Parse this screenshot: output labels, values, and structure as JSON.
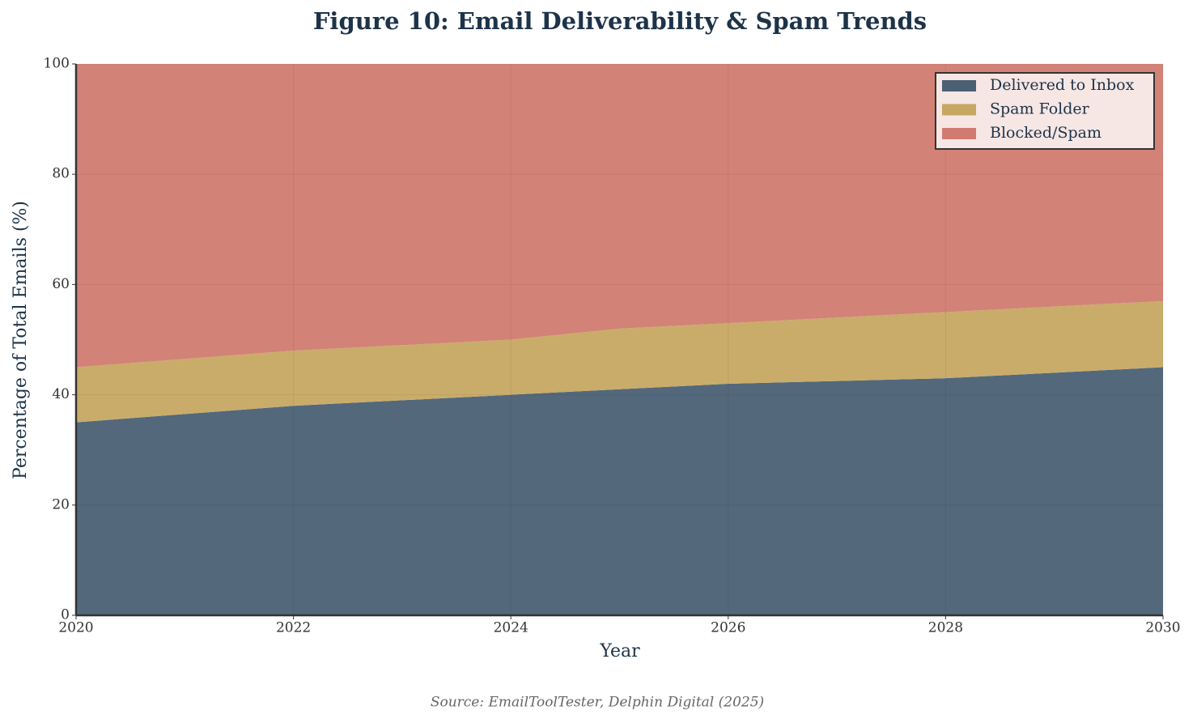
{
  "chart_data": {
    "type": "stacked-area",
    "title": "Figure 10: Email Deliverability & Spam Trends",
    "xlabel": "Year",
    "ylabel": "Percentage of Total Emails (%)",
    "source": "Source: EmailToolTester, Delphin Digital (2025)",
    "x": [
      2020,
      2021,
      2022,
      2023,
      2024,
      2025,
      2026,
      2027,
      2028,
      2029,
      2030
    ],
    "series": [
      {
        "name": "Delivered to Inbox",
        "color": "#4a6074",
        "values": [
          35,
          36.5,
          38,
          39,
          40,
          41,
          42,
          42.5,
          43,
          44,
          45
        ]
      },
      {
        "name": "Spam Folder",
        "color": "#c6a862",
        "values": [
          10,
          10,
          10,
          10,
          10,
          11,
          11,
          11.5,
          12,
          12,
          12
        ]
      },
      {
        "name": "Blocked/Spam",
        "color": "#d17b70",
        "values": [
          55,
          53.5,
          52,
          51,
          50,
          48,
          47,
          46,
          45,
          44,
          43
        ]
      }
    ],
    "xlim": [
      2020,
      2030
    ],
    "xticks": [
      2020,
      2022,
      2024,
      2026,
      2028,
      2030
    ],
    "ylim": [
      0,
      100
    ],
    "yticks": [
      0,
      20,
      40,
      60,
      80,
      100
    ],
    "grid": true,
    "legend": "upper right"
  }
}
